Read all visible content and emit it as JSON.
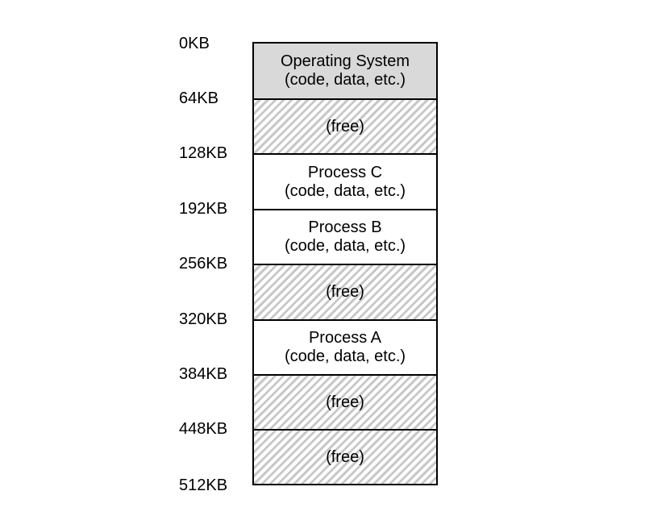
{
  "addresses": [
    "0KB",
    "64KB",
    "128KB",
    "192KB",
    "256KB",
    "320KB",
    "384KB",
    "448KB",
    "512KB"
  ],
  "segments": [
    {
      "type": "os",
      "line1": "Operating System",
      "line2": "(code, data, etc.)"
    },
    {
      "type": "free",
      "line1": "(free)",
      "line2": ""
    },
    {
      "type": "process",
      "line1": "Process C",
      "line2": "(code, data, etc.)"
    },
    {
      "type": "process",
      "line1": "Process B",
      "line2": "(code, data, etc.)"
    },
    {
      "type": "free",
      "line1": "(free)",
      "line2": ""
    },
    {
      "type": "process",
      "line1": "Process A",
      "line2": "(code, data, etc.)"
    },
    {
      "type": "free",
      "line1": "(free)",
      "line2": ""
    },
    {
      "type": "free",
      "line1": "(free)",
      "line2": ""
    }
  ],
  "colors": {
    "os_fill": "#d9d9d9",
    "free_hatch": "#c8c8c8",
    "border": "#000000"
  }
}
